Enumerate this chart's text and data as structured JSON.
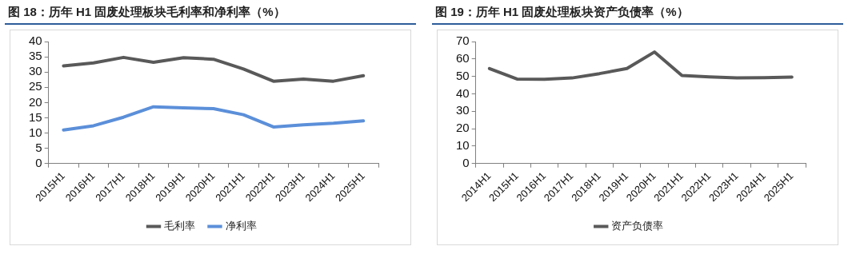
{
  "chart_data": [
    {
      "type": "line",
      "title": "图 18：历年 H1 固废处理板块毛利率和净利率（%）",
      "categories": [
        "2015H1",
        "2016H1",
        "2017H1",
        "2018H1",
        "2019H1",
        "2020H1",
        "2021H1",
        "2022H1",
        "2023H1",
        "2024H1",
        "2025H1"
      ],
      "series": [
        {
          "name": "毛利率",
          "color": "#595959",
          "values": [
            32,
            33,
            34.8,
            33.2,
            34.7,
            34.2,
            31,
            27,
            27.7,
            27,
            28.8
          ]
        },
        {
          "name": "净利率",
          "color": "#5b8fd9",
          "values": [
            11,
            12.4,
            15.2,
            18.6,
            18.3,
            18,
            16,
            12,
            12.7,
            13.2,
            14
          ]
        }
      ],
      "ylim": [
        0,
        40
      ],
      "yticks": [
        0,
        5,
        10,
        15,
        20,
        25,
        30,
        35,
        40
      ],
      "grid": false,
      "legend": "bottom",
      "marker": "none",
      "line_style": "solid"
    },
    {
      "type": "line",
      "title": "图 19：历年 H1 固废处理板块资产负债率（%）",
      "categories": [
        "2014H1",
        "2015H1",
        "2016H1",
        "2017H1",
        "2018H1",
        "2019H1",
        "2020H1",
        "2021H1",
        "2022H1",
        "2023H1",
        "2024H1",
        "2025H1"
      ],
      "series": [
        {
          "name": "资产负债率",
          "color": "#595959",
          "values": [
            54.5,
            48.5,
            48.3,
            49.1,
            51.6,
            54.5,
            64,
            50.5,
            49.7,
            49.1,
            49.3,
            49.6
          ]
        }
      ],
      "ylim": [
        0,
        70
      ],
      "yticks": [
        0,
        10,
        20,
        30,
        40,
        50,
        60,
        70
      ],
      "grid": false,
      "legend": "bottom",
      "marker": "none",
      "line_style": "solid"
    }
  ]
}
